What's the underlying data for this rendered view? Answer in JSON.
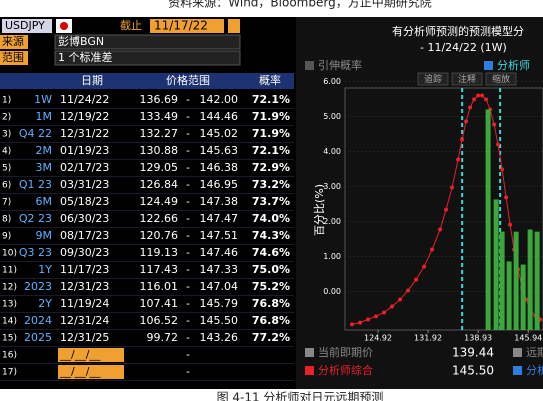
{
  "caption_top": "资料来源：Wind，Bloomberg，方正中期研究院",
  "caption_bottom": "图 4-11 分析师对日元远期预测",
  "controls": {
    "ticker": "USDJPY",
    "as_of_label": "截止",
    "as_of": "11/17/22",
    "source_label": "来源",
    "source": "彭博BGN",
    "range_label": "范围",
    "range": "1 个标准差"
  },
  "table": {
    "columns": [
      "日期",
      "价格范围",
      "概率"
    ],
    "rows": [
      {
        "index": "1)",
        "tenor": "1W",
        "date": "11/24/22",
        "low": "136.69",
        "sep": "-",
        "high": "142.00",
        "prob": "72.1%"
      },
      {
        "index": "2)",
        "tenor": "1M",
        "date": "12/19/22",
        "low": "133.49",
        "sep": "-",
        "high": "144.46",
        "prob": "71.9%"
      },
      {
        "index": "3)",
        "tenor": "Q4 22",
        "date": "12/31/22",
        "low": "132.27",
        "sep": "-",
        "high": "145.02",
        "prob": "71.9%"
      },
      {
        "index": "4)",
        "tenor": "2M",
        "date": "01/19/23",
        "low": "130.88",
        "sep": "-",
        "high": "145.63",
        "prob": "72.1%"
      },
      {
        "index": "5)",
        "tenor": "3M",
        "date": "02/17/23",
        "low": "129.05",
        "sep": "-",
        "high": "146.38",
        "prob": "72.9%"
      },
      {
        "index": "6)",
        "tenor": "Q1 23",
        "date": "03/31/23",
        "low": "126.84",
        "sep": "-",
        "high": "146.95",
        "prob": "73.2%"
      },
      {
        "index": "7)",
        "tenor": "6M",
        "date": "05/18/23",
        "low": "124.49",
        "sep": "-",
        "high": "147.38",
        "prob": "73.7%"
      },
      {
        "index": "8)",
        "tenor": "Q2 23",
        "date": "06/30/23",
        "low": "122.66",
        "sep": "-",
        "high": "147.47",
        "prob": "74.0%"
      },
      {
        "index": "9)",
        "tenor": "9M",
        "date": "08/17/23",
        "low": "120.76",
        "sep": "-",
        "high": "147.51",
        "prob": "74.3%"
      },
      {
        "index": "10)",
        "tenor": "Q3 23",
        "date": "09/30/23",
        "low": "119.13",
        "sep": "-",
        "high": "147.46",
        "prob": "74.6%"
      },
      {
        "index": "11)",
        "tenor": "1Y",
        "date": "11/17/23",
        "low": "117.43",
        "sep": "-",
        "high": "147.33",
        "prob": "75.0%"
      },
      {
        "index": "12)",
        "tenor": "2023",
        "date": "12/31/23",
        "low": "116.01",
        "sep": "-",
        "high": "147.04",
        "prob": "75.2%"
      },
      {
        "index": "13)",
        "tenor": "2Y",
        "date": "11/19/24",
        "low": "107.41",
        "sep": "-",
        "high": "145.79",
        "prob": "76.8%"
      },
      {
        "index": "14)",
        "tenor": "2024",
        "date": "12/31/24",
        "low": "106.52",
        "sep": "-",
        "high": "145.50",
        "prob": "76.8%"
      },
      {
        "index": "15)",
        "tenor": "2025",
        "date": "12/31/25",
        "low": "99.72",
        "sep": "-",
        "high": "143.26",
        "prob": "77.2%"
      },
      {
        "index": "16)",
        "date": "__/__/__",
        "sep": "-"
      },
      {
        "index": "17)",
        "date": "__/__/__",
        "sep": "-"
      }
    ]
  },
  "chart_data": {
    "type": "line",
    "title": "有分析师预测的预测模型分",
    "subtitle": "- 11/24/22 (1W)",
    "toolbar": [
      "追踪",
      "注释",
      "缩放"
    ],
    "y_label": "百分比(%)",
    "xlim": [
      120.3,
      148.0
    ],
    "ylim": [
      -1.1,
      6.1
    ],
    "xticks": [
      124.92,
      131.92,
      138.93,
      145.94
    ],
    "yticks": [
      {
        "value": 0,
        "label": "0.00"
      },
      {
        "value": 1,
        "label": "1.00"
      },
      {
        "value": 2,
        "label": "2.00"
      },
      {
        "value": 3,
        "label": "3.00"
      },
      {
        "value": 4,
        "label": "4.00"
      },
      {
        "value": 5,
        "label": "5.00"
      },
      {
        "value": 6,
        "label": "6.00"
      }
    ],
    "series": [
      {
        "name": "引伸概率",
        "color": "#e8202a",
        "x": [
          121.28,
          122.4,
          123.52,
          124.64,
          125.76,
          126.88,
          128.0,
          129.12,
          130.24,
          131.36,
          132.48,
          133.6,
          134.44,
          135.28,
          136.12,
          136.68,
          137.24,
          137.8,
          138.36,
          138.92,
          139.48,
          140.04,
          140.6,
          141.16,
          141.72,
          142.28,
          142.84,
          143.4,
          143.96,
          144.52,
          145.08,
          145.64,
          146.2,
          146.9,
          147.6
        ],
        "values": [
          -0.94,
          -0.89,
          -0.8,
          -0.71,
          -0.6,
          -0.43,
          -0.23,
          0.03,
          0.34,
          0.71,
          1.2,
          1.77,
          2.34,
          2.97,
          3.77,
          4.34,
          4.86,
          5.26,
          5.49,
          5.6,
          5.6,
          5.49,
          5.2,
          4.77,
          4.2,
          3.49,
          2.69,
          1.91,
          1.2,
          0.63,
          0.11,
          -0.23,
          -0.51,
          -0.69,
          -0.8
        ]
      },
      {
        "name": "分析师",
        "type": "bar",
        "color": "#3aa83a",
        "x": [
          140.32,
          141.44,
          142.28,
          143.26,
          144.24,
          145.22,
          146.2,
          147.18
        ],
        "values": [
          5.2,
          2.63,
          1.71,
          0.86,
          1.71,
          0.77,
          1.77,
          1.71
        ]
      }
    ],
    "footer": [
      {
        "label": "当前即期价",
        "value": "139.44",
        "color": "#888888"
      },
      {
        "label": "分析师综合",
        "value": "145.50",
        "color": "#e8202a"
      }
    ],
    "footer_right": [
      {
        "label": "远期",
        "color": "#888888"
      },
      {
        "label": "分析",
        "color": "#2f7de1"
      }
    ]
  }
}
